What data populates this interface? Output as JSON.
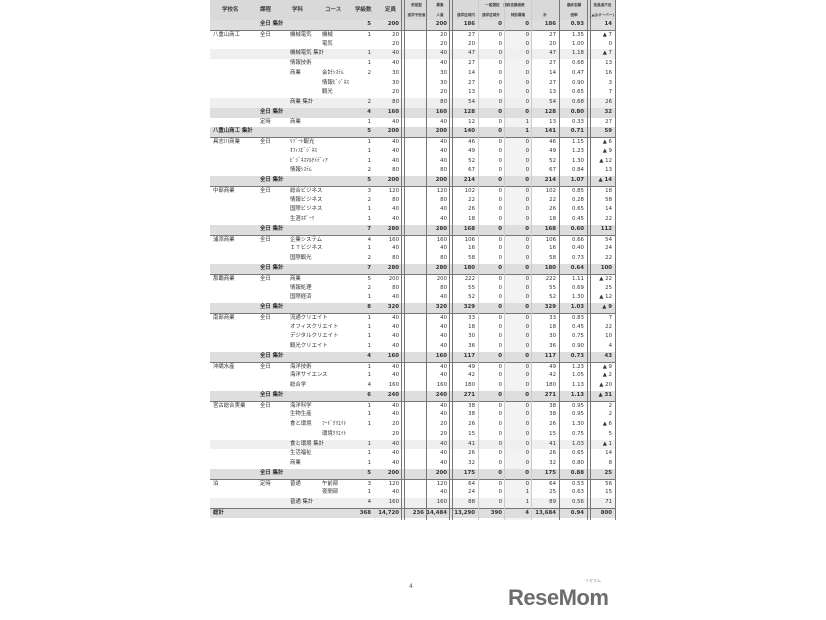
{
  "header": {
    "school": "学校名",
    "course_type": "課程",
    "department": "学科",
    "course": "コース",
    "classes": "学級数",
    "capacity": "定員",
    "heisetsu_1": "併設型",
    "heisetsu_2": "進学予定者",
    "boshu_1": "募集",
    "boshu_2": "人員",
    "general": "一般選抜　最終志願者数",
    "inside": "通学区域内",
    "outside": "通学区域外",
    "special": "特別募集",
    "total": "計",
    "ratio_1": "最終志願",
    "ratio_2": "倍率",
    "diff_1": "定員過不足",
    "diff_2": "(▲はオーバー)"
  },
  "rows": [
    [
      "",
      "全日 集計",
      "",
      "",
      "5",
      "200",
      "",
      "200",
      "186",
      "0",
      "0",
      "186",
      "0.93",
      "14",
      "sum"
    ],
    [
      "八重山商工",
      "全日",
      "機械電気",
      "機械",
      "1",
      "20",
      "",
      "20",
      "27",
      "0",
      "0",
      "27",
      "1.35",
      "▲ 7",
      "grp"
    ],
    [
      "",
      "",
      "",
      "電気",
      "",
      "20",
      "",
      "20",
      "20",
      "0",
      "0",
      "20",
      "1.00",
      "0",
      ""
    ],
    [
      "",
      "",
      "機械電気 集計",
      "",
      "1",
      "40",
      "",
      "40",
      "47",
      "0",
      "0",
      "47",
      "1.18",
      "▲ 7",
      "sub"
    ],
    [
      "",
      "",
      "情報技術",
      "",
      "1",
      "40",
      "",
      "40",
      "27",
      "0",
      "0",
      "27",
      "0.68",
      "13",
      ""
    ],
    [
      "",
      "",
      "商業",
      "会計ｼｽﾃﾑ",
      "2",
      "30",
      "",
      "30",
      "14",
      "0",
      "0",
      "14",
      "0.47",
      "16",
      ""
    ],
    [
      "",
      "",
      "",
      "情報ﾋﾞｼﾞﾈｽ",
      "",
      "30",
      "",
      "30",
      "27",
      "0",
      "0",
      "27",
      "0.90",
      "3",
      ""
    ],
    [
      "",
      "",
      "",
      "観光",
      "",
      "20",
      "",
      "20",
      "13",
      "0",
      "0",
      "13",
      "0.65",
      "7",
      ""
    ],
    [
      "",
      "",
      "商業 集計",
      "",
      "2",
      "80",
      "",
      "80",
      "54",
      "0",
      "0",
      "54",
      "0.68",
      "26",
      "sub"
    ],
    [
      "",
      "全日 集計",
      "",
      "",
      "4",
      "160",
      "",
      "160",
      "128",
      "0",
      "0",
      "128",
      "0.80",
      "32",
      "sum"
    ],
    [
      "",
      "定時",
      "商業",
      "",
      "1",
      "40",
      "",
      "40",
      "12",
      "0",
      "1",
      "13",
      "0.33",
      "27",
      ""
    ],
    [
      "八重山商工 集計",
      "",
      "",
      "",
      "5",
      "200",
      "",
      "200",
      "140",
      "0",
      "1",
      "141",
      "0.71",
      "59",
      "sum"
    ],
    [
      "具志川商業",
      "全日",
      "ﾘｿﾞｰﾄ観光",
      "",
      "1",
      "40",
      "",
      "40",
      "46",
      "0",
      "0",
      "46",
      "1.15",
      "▲ 6",
      "grp"
    ],
    [
      "",
      "",
      "ｵﾌｨｽﾋﾞｼﾞﾈｽ",
      "",
      "1",
      "40",
      "",
      "40",
      "49",
      "0",
      "0",
      "49",
      "1.23",
      "▲ 9",
      ""
    ],
    [
      "",
      "",
      "ﾋﾞｼﾞﾈｽﾏﾙﾁﾒﾃﾞｨｱ",
      "",
      "1",
      "40",
      "",
      "40",
      "52",
      "0",
      "0",
      "52",
      "1.30",
      "▲ 12",
      ""
    ],
    [
      "",
      "",
      "情報ｼｽﾃﾑ",
      "",
      "2",
      "80",
      "",
      "80",
      "67",
      "0",
      "0",
      "67",
      "0.84",
      "13",
      ""
    ],
    [
      "",
      "全日 集計",
      "",
      "",
      "5",
      "200",
      "",
      "200",
      "214",
      "0",
      "0",
      "214",
      "1.07",
      "▲ 14",
      "sum"
    ],
    [
      "中部商業",
      "全日",
      "総合ビジネス",
      "",
      "3",
      "120",
      "",
      "120",
      "102",
      "0",
      "0",
      "102",
      "0.85",
      "18",
      "grp"
    ],
    [
      "",
      "",
      "情報ビジネス",
      "",
      "2",
      "80",
      "",
      "80",
      "22",
      "0",
      "0",
      "22",
      "0.28",
      "58",
      ""
    ],
    [
      "",
      "",
      "国際ビジネス",
      "",
      "1",
      "40",
      "",
      "40",
      "26",
      "0",
      "0",
      "26",
      "0.65",
      "14",
      ""
    ],
    [
      "",
      "",
      "生涯ｽﾎﾟｰﾂ",
      "",
      "1",
      "40",
      "",
      "40",
      "18",
      "0",
      "0",
      "18",
      "0.45",
      "22",
      ""
    ],
    [
      "",
      "全日 集計",
      "",
      "",
      "7",
      "280",
      "",
      "280",
      "168",
      "0",
      "0",
      "168",
      "0.60",
      "112",
      "sum"
    ],
    [
      "浦添商業",
      "全日",
      "企業システム",
      "",
      "4",
      "160",
      "",
      "160",
      "106",
      "0",
      "0",
      "106",
      "0.66",
      "54",
      "grp"
    ],
    [
      "",
      "",
      "ＩＴビジネス",
      "",
      "1",
      "40",
      "",
      "40",
      "16",
      "0",
      "0",
      "16",
      "0.40",
      "24",
      ""
    ],
    [
      "",
      "",
      "国際観光",
      "",
      "2",
      "80",
      "",
      "80",
      "58",
      "0",
      "0",
      "58",
      "0.73",
      "22",
      ""
    ],
    [
      "",
      "全日 集計",
      "",
      "",
      "7",
      "280",
      "",
      "280",
      "180",
      "0",
      "0",
      "180",
      "0.64",
      "100",
      "sum"
    ],
    [
      "那覇商業",
      "全日",
      "商業",
      "",
      "5",
      "200",
      "",
      "200",
      "222",
      "0",
      "0",
      "222",
      "1.11",
      "▲ 22",
      "grp"
    ],
    [
      "",
      "",
      "情報処理",
      "",
      "2",
      "80",
      "",
      "80",
      "55",
      "0",
      "0",
      "55",
      "0.69",
      "25",
      ""
    ],
    [
      "",
      "",
      "国際経済",
      "",
      "1",
      "40",
      "",
      "40",
      "52",
      "0",
      "0",
      "52",
      "1.30",
      "▲ 12",
      ""
    ],
    [
      "",
      "全日 集計",
      "",
      "",
      "8",
      "320",
      "",
      "320",
      "329",
      "0",
      "0",
      "329",
      "1.03",
      "▲ 9",
      "sum"
    ],
    [
      "南部商業",
      "全日",
      "流通クリエイト",
      "",
      "1",
      "40",
      "",
      "40",
      "33",
      "0",
      "0",
      "33",
      "0.83",
      "7",
      "grp"
    ],
    [
      "",
      "",
      "オフィスクリエイト",
      "",
      "1",
      "40",
      "",
      "40",
      "18",
      "0",
      "0",
      "18",
      "0.45",
      "22",
      ""
    ],
    [
      "",
      "",
      "デジタルクリエイト",
      "",
      "1",
      "40",
      "",
      "40",
      "30",
      "0",
      "0",
      "30",
      "0.75",
      "10",
      ""
    ],
    [
      "",
      "",
      "観光クリエイト",
      "",
      "1",
      "40",
      "",
      "40",
      "36",
      "0",
      "0",
      "36",
      "0.90",
      "4",
      ""
    ],
    [
      "",
      "全日 集計",
      "",
      "",
      "4",
      "160",
      "",
      "160",
      "117",
      "0",
      "0",
      "117",
      "0.73",
      "43",
      "sum"
    ],
    [
      "沖縄水産",
      "全日",
      "海洋技術",
      "",
      "1",
      "40",
      "",
      "40",
      "49",
      "0",
      "0",
      "49",
      "1.23",
      "▲ 9",
      "grp"
    ],
    [
      "",
      "",
      "海洋サイエンス",
      "",
      "1",
      "40",
      "",
      "40",
      "42",
      "0",
      "0",
      "42",
      "1.05",
      "▲ 2",
      ""
    ],
    [
      "",
      "",
      "総合学",
      "",
      "4",
      "160",
      "",
      "160",
      "180",
      "0",
      "0",
      "180",
      "1.13",
      "▲ 20",
      ""
    ],
    [
      "",
      "全日 集計",
      "",
      "",
      "6",
      "240",
      "",
      "240",
      "271",
      "0",
      "0",
      "271",
      "1.13",
      "▲ 31",
      "sum"
    ],
    [
      "宮古総合実業",
      "全日",
      "海洋科学",
      "",
      "1",
      "40",
      "",
      "40",
      "38",
      "0",
      "0",
      "38",
      "0.95",
      "2",
      "grp"
    ],
    [
      "",
      "",
      "生物生産",
      "",
      "1",
      "40",
      "",
      "40",
      "38",
      "0",
      "0",
      "38",
      "0.95",
      "2",
      ""
    ],
    [
      "",
      "",
      "食と環境",
      "ﾌｰﾄﾞｸﾘｴｲﾄ",
      "1",
      "20",
      "",
      "20",
      "26",
      "0",
      "0",
      "26",
      "1.30",
      "▲ 6",
      ""
    ],
    [
      "",
      "",
      "",
      "環境ｸﾘｴｲﾄ",
      "",
      "20",
      "",
      "20",
      "15",
      "0",
      "0",
      "15",
      "0.75",
      "5",
      ""
    ],
    [
      "",
      "",
      "食と環境 集計",
      "",
      "1",
      "40",
      "",
      "40",
      "41",
      "0",
      "0",
      "41",
      "1.03",
      "▲ 1",
      "sub"
    ],
    [
      "",
      "",
      "生活福祉",
      "",
      "1",
      "40",
      "",
      "40",
      "26",
      "0",
      "0",
      "26",
      "0.65",
      "14",
      ""
    ],
    [
      "",
      "",
      "商業",
      "",
      "1",
      "40",
      "",
      "40",
      "32",
      "0",
      "0",
      "32",
      "0.80",
      "8",
      ""
    ],
    [
      "",
      "全日 集計",
      "",
      "",
      "5",
      "200",
      "",
      "200",
      "175",
      "0",
      "0",
      "175",
      "0.88",
      "25",
      "sum"
    ],
    [
      "泊",
      "定時",
      "普通",
      "午前部",
      "3",
      "120",
      "",
      "120",
      "64",
      "0",
      "0",
      "64",
      "0.53",
      "56",
      "grp"
    ],
    [
      "",
      "",
      "",
      "夜間部",
      "1",
      "40",
      "",
      "40",
      "24",
      "0",
      "1",
      "25",
      "0.63",
      "15",
      ""
    ],
    [
      "",
      "",
      "普通 集計",
      "",
      "4",
      "160",
      "",
      "160",
      "88",
      "0",
      "1",
      "89",
      "0.56",
      "71",
      "sub"
    ],
    [
      "総計",
      "",
      "",
      "",
      "368",
      "14,720",
      "236",
      "14,484",
      "13,290",
      "390",
      "4",
      "13,684",
      "0.94",
      "800",
      "sum grp"
    ]
  ],
  "page_number": "4",
  "logo": {
    "text": "ReseMom",
    "kana": "リセマム",
    "color": "#6d6d6d"
  }
}
